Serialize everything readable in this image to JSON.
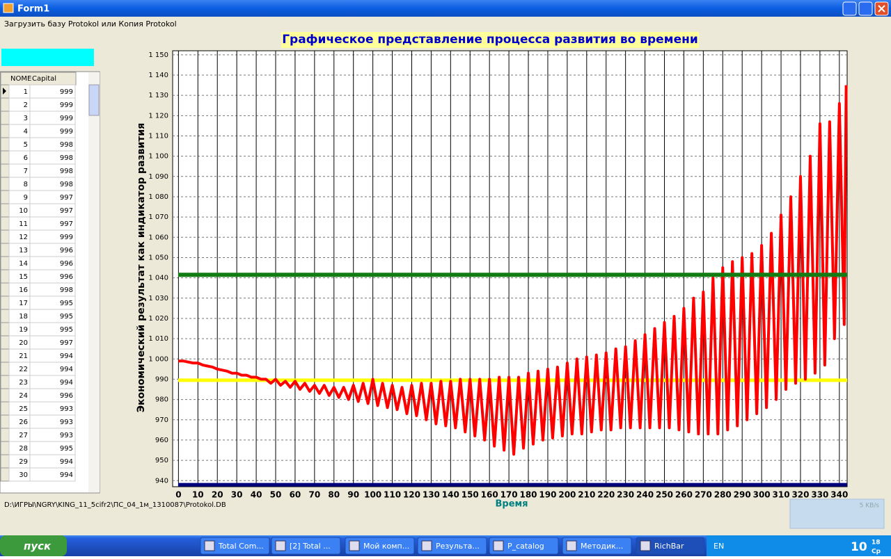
{
  "window": {
    "title": "Form1"
  },
  "menu": {
    "item": "Загрузить базу Protokol или Копия Protokol"
  },
  "grid": {
    "headers": [
      "NOME",
      "Capital"
    ],
    "rows": [
      [
        1,
        999
      ],
      [
        2,
        999
      ],
      [
        3,
        999
      ],
      [
        4,
        999
      ],
      [
        5,
        998
      ],
      [
        6,
        998
      ],
      [
        7,
        998
      ],
      [
        8,
        998
      ],
      [
        9,
        997
      ],
      [
        10,
        997
      ],
      [
        11,
        997
      ],
      [
        12,
        999
      ],
      [
        13,
        996
      ],
      [
        14,
        996
      ],
      [
        15,
        996
      ],
      [
        16,
        998
      ],
      [
        17,
        995
      ],
      [
        18,
        995
      ],
      [
        19,
        995
      ],
      [
        20,
        997
      ],
      [
        21,
        994
      ],
      [
        22,
        994
      ],
      [
        23,
        994
      ],
      [
        24,
        996
      ],
      [
        25,
        993
      ],
      [
        26,
        993
      ],
      [
        27,
        993
      ],
      [
        28,
        995
      ],
      [
        29,
        994
      ],
      [
        30,
        994
      ]
    ]
  },
  "status": {
    "path": "D:\\ИГРЫ\\NGRY\\KING_11_5cifr2\\ПС_04_1м_1310087\\Protokol.DB"
  },
  "net_widget": "5 KB/s",
  "taskbar": {
    "start": "пуск",
    "items": [
      "Total Com...",
      "[2] Total ...",
      "Мой комп...",
      "Результа...",
      "P_catalog",
      "Методик...",
      "RichBar"
    ],
    "lang": "EN",
    "clock": "10",
    "clock_small": "18",
    "day": "Ср"
  },
  "chart_data": {
    "type": "line",
    "title": "Графическое представление процесса развития во времени",
    "x_label": "Время",
    "y_label": "Экономический результат как индикатор развития",
    "xlim": [
      -3,
      344
    ],
    "ylim": [
      937,
      1152
    ],
    "xticks": [
      0,
      10,
      20,
      30,
      40,
      50,
      60,
      70,
      80,
      90,
      100,
      110,
      120,
      130,
      140,
      150,
      160,
      170,
      180,
      190,
      200,
      210,
      220,
      230,
      240,
      250,
      260,
      270,
      280,
      290,
      300,
      310,
      320,
      330,
      340
    ],
    "yticks": [
      940,
      950,
      960,
      970,
      980,
      990,
      {
        "value": 1000,
        "label": "1 000"
      },
      {
        "value": 1010,
        "label": "1 010"
      },
      {
        "value": 1020,
        "label": "1 020"
      },
      {
        "value": 1030,
        "label": "1 030"
      },
      {
        "value": 1040,
        "label": "1 040"
      },
      {
        "value": 1050,
        "label": "1 050"
      },
      {
        "value": 1060,
        "label": "1 060"
      },
      {
        "value": 1070,
        "label": "1 070"
      },
      {
        "value": 1080,
        "label": "1 080"
      },
      {
        "value": 1090,
        "label": "1 090"
      },
      {
        "value": 1100,
        "label": "1 100"
      },
      {
        "value": 1110,
        "label": "1 110"
      },
      {
        "value": 1120,
        "label": "1 120"
      },
      {
        "value": 1130,
        "label": "1 130"
      },
      {
        "value": 1140,
        "label": "1 140"
      },
      {
        "value": 1150,
        "label": "1 150"
      }
    ],
    "grid": true,
    "reference_lines": [
      {
        "value": 1041.5,
        "color": "#137d13"
      },
      {
        "value": 989.5,
        "color": "#ffff00"
      },
      {
        "value": 938,
        "color": "#00007f"
      }
    ],
    "x": [
      0,
      2.5,
      5,
      7.5,
      10,
      12.5,
      15,
      17.5,
      20,
      22.5,
      25,
      27.5,
      30,
      32.5,
      35,
      37.5,
      40,
      42.5,
      45,
      47.5,
      50,
      52.5,
      55,
      57.5,
      60,
      62.5,
      65,
      67.5,
      70,
      72.5,
      75,
      77.5,
      80,
      82.5,
      85,
      87.5,
      90,
      92.5,
      95,
      97.5,
      100,
      102.5,
      105,
      107.5,
      110,
      112.5,
      115,
      117.5,
      120,
      122.5,
      125,
      127.5,
      130,
      132.5,
      135,
      137.5,
      140,
      142.5,
      145,
      147.5,
      150,
      152.5,
      155,
      157.5,
      160,
      162.5,
      165,
      167.5,
      170,
      172.5,
      175,
      177.5,
      180,
      182.5,
      185,
      187.5,
      190,
      192.5,
      195,
      197.5,
      200,
      202.5,
      205,
      207.5,
      210,
      212.5,
      215,
      217.5,
      220,
      222.5,
      225,
      227.5,
      230,
      232.5,
      235,
      237.5,
      240,
      242.5,
      245,
      247.5,
      250,
      252.5,
      255,
      257.5,
      260,
      262.5,
      265,
      267.5,
      270,
      272.5,
      275,
      277.5,
      280,
      282.5,
      285,
      287.5,
      290,
      292.5,
      295,
      297.5,
      300,
      302.5,
      305,
      307.5,
      310,
      312.5,
      315,
      317.5,
      320,
      322.5,
      325,
      327.5,
      330,
      332.5,
      335,
      337.5,
      340,
      342.5,
      343.5
    ],
    "series": [
      {
        "color": "#ff0000",
        "values": [
          999,
          999,
          998.5,
          998,
          998,
          997,
          996.5,
          996,
          995,
          994.5,
          994,
          993,
          993,
          992,
          992,
          991,
          991,
          990,
          990,
          988,
          990,
          987,
          989,
          986,
          989,
          985,
          988,
          984,
          987,
          983,
          987,
          982,
          986,
          981,
          986,
          980,
          987,
          979,
          988,
          978,
          990,
          977,
          988,
          976,
          987,
          975,
          986,
          973,
          987,
          972,
          988,
          970,
          988,
          968,
          989,
          967,
          989,
          966,
          990,
          964,
          990,
          962,
          990,
          960,
          990,
          957,
          991,
          955,
          991,
          953,
          991,
          956,
          993,
          958,
          994,
          960,
          995,
          961,
          996,
          962,
          998,
          963,
          1000,
          963,
          1001,
          964,
          1002,
          965,
          1003,
          965,
          1005,
          966,
          1006,
          966,
          1009,
          966,
          1012,
          966,
          1015,
          966,
          1018,
          966,
          1021,
          965,
          1025,
          964,
          1030,
          963,
          1033,
          963,
          1040,
          963,
          1045,
          965,
          1048,
          967,
          1050,
          970,
          1052,
          973,
          1056,
          976,
          1062,
          980,
          1071,
          985,
          1080,
          988,
          1090,
          990,
          1100,
          993,
          1116,
          997,
          1117,
          1010,
          1126,
          1017,
          1135
        ]
      }
    ]
  }
}
